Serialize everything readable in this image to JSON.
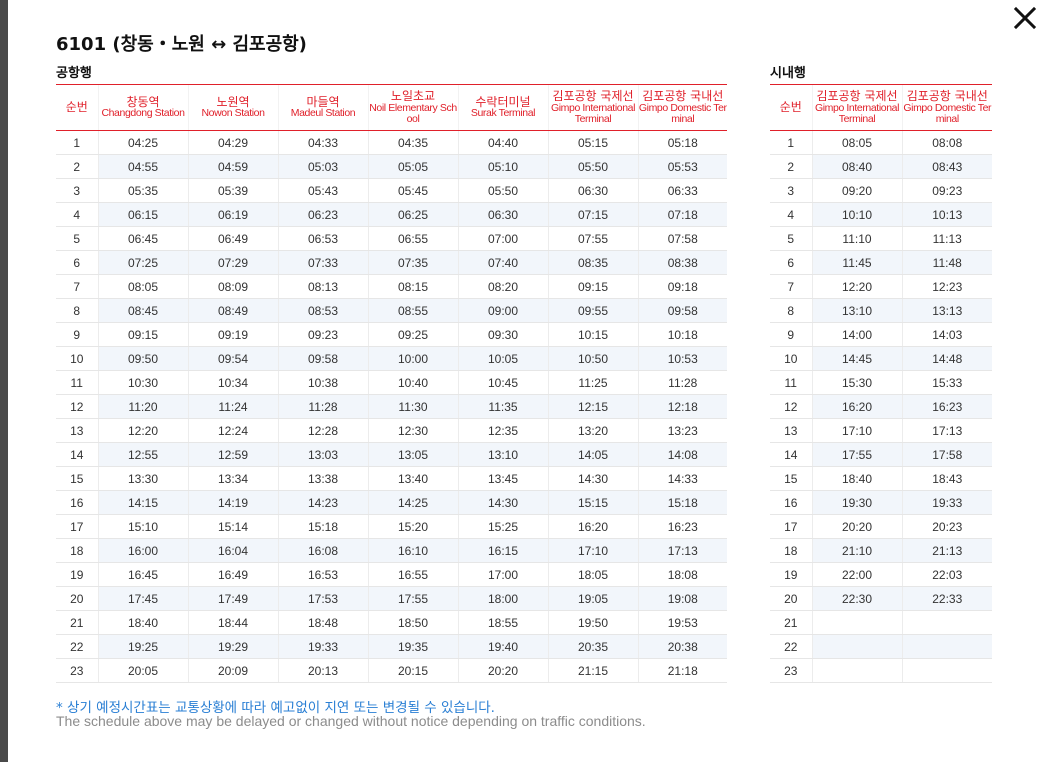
{
  "title": "6101 (창동・노원 ↔ 김포공항)",
  "close_icon": "close-icon",
  "airport": {
    "label": "공항행",
    "headers": [
      {
        "ko": "순번",
        "en": ""
      },
      {
        "ko": "창동역",
        "en": "Changdong Station"
      },
      {
        "ko": "노원역",
        "en": "Nowon Station"
      },
      {
        "ko": "마들역",
        "en": "Madeul Station"
      },
      {
        "ko": "노일초교",
        "en": "Noil Elementary School"
      },
      {
        "ko": "수락터미널",
        "en": "Surak Terminal"
      },
      {
        "ko": "김포공항 국제선",
        "en": "Gimpo International Terminal"
      },
      {
        "ko": "김포공항 국내선",
        "en": "Gimpo Domestic Terminal"
      }
    ],
    "rows": [
      [
        "1",
        "04:25",
        "04:29",
        "04:33",
        "04:35",
        "04:40",
        "05:15",
        "05:18"
      ],
      [
        "2",
        "04:55",
        "04:59",
        "05:03",
        "05:05",
        "05:10",
        "05:50",
        "05:53"
      ],
      [
        "3",
        "05:35",
        "05:39",
        "05:43",
        "05:45",
        "05:50",
        "06:30",
        "06:33"
      ],
      [
        "4",
        "06:15",
        "06:19",
        "06:23",
        "06:25",
        "06:30",
        "07:15",
        "07:18"
      ],
      [
        "5",
        "06:45",
        "06:49",
        "06:53",
        "06:55",
        "07:00",
        "07:55",
        "07:58"
      ],
      [
        "6",
        "07:25",
        "07:29",
        "07:33",
        "07:35",
        "07:40",
        "08:35",
        "08:38"
      ],
      [
        "7",
        "08:05",
        "08:09",
        "08:13",
        "08:15",
        "08:20",
        "09:15",
        "09:18"
      ],
      [
        "8",
        "08:45",
        "08:49",
        "08:53",
        "08:55",
        "09:00",
        "09:55",
        "09:58"
      ],
      [
        "9",
        "09:15",
        "09:19",
        "09:23",
        "09:25",
        "09:30",
        "10:15",
        "10:18"
      ],
      [
        "10",
        "09:50",
        "09:54",
        "09:58",
        "10:00",
        "10:05",
        "10:50",
        "10:53"
      ],
      [
        "11",
        "10:30",
        "10:34",
        "10:38",
        "10:40",
        "10:45",
        "11:25",
        "11:28"
      ],
      [
        "12",
        "11:20",
        "11:24",
        "11:28",
        "11:30",
        "11:35",
        "12:15",
        "12:18"
      ],
      [
        "13",
        "12:20",
        "12:24",
        "12:28",
        "12:30",
        "12:35",
        "13:20",
        "13:23"
      ],
      [
        "14",
        "12:55",
        "12:59",
        "13:03",
        "13:05",
        "13:10",
        "14:05",
        "14:08"
      ],
      [
        "15",
        "13:30",
        "13:34",
        "13:38",
        "13:40",
        "13:45",
        "14:30",
        "14:33"
      ],
      [
        "16",
        "14:15",
        "14:19",
        "14:23",
        "14:25",
        "14:30",
        "15:15",
        "15:18"
      ],
      [
        "17",
        "15:10",
        "15:14",
        "15:18",
        "15:20",
        "15:25",
        "16:20",
        "16:23"
      ],
      [
        "18",
        "16:00",
        "16:04",
        "16:08",
        "16:10",
        "16:15",
        "17:10",
        "17:13"
      ],
      [
        "19",
        "16:45",
        "16:49",
        "16:53",
        "16:55",
        "17:00",
        "18:05",
        "18:08"
      ],
      [
        "20",
        "17:45",
        "17:49",
        "17:53",
        "17:55",
        "18:00",
        "19:05",
        "19:08"
      ],
      [
        "21",
        "18:40",
        "18:44",
        "18:48",
        "18:50",
        "18:55",
        "19:50",
        "19:53"
      ],
      [
        "22",
        "19:25",
        "19:29",
        "19:33",
        "19:35",
        "19:40",
        "20:35",
        "20:38"
      ],
      [
        "23",
        "20:05",
        "20:09",
        "20:13",
        "20:15",
        "20:20",
        "21:15",
        "21:18"
      ]
    ]
  },
  "city": {
    "label": "시내행",
    "headers": [
      {
        "ko": "순번",
        "en": ""
      },
      {
        "ko": "김포공항 국제선",
        "en": "Gimpo International Terminal"
      },
      {
        "ko": "김포공항 국내선",
        "en": "Gimpo Domestic Terminal"
      }
    ],
    "rows": [
      [
        "1",
        "08:05",
        "08:08"
      ],
      [
        "2",
        "08:40",
        "08:43"
      ],
      [
        "3",
        "09:20",
        "09:23"
      ],
      [
        "4",
        "10:10",
        "10:13"
      ],
      [
        "5",
        "11:10",
        "11:13"
      ],
      [
        "6",
        "11:45",
        "11:48"
      ],
      [
        "7",
        "12:20",
        "12:23"
      ],
      [
        "8",
        "13:10",
        "13:13"
      ],
      [
        "9",
        "14:00",
        "14:03"
      ],
      [
        "10",
        "14:45",
        "14:48"
      ],
      [
        "11",
        "15:30",
        "15:33"
      ],
      [
        "12",
        "16:20",
        "16:23"
      ],
      [
        "13",
        "17:10",
        "17:13"
      ],
      [
        "14",
        "17:55",
        "17:58"
      ],
      [
        "15",
        "18:40",
        "18:43"
      ],
      [
        "16",
        "19:30",
        "19:33"
      ],
      [
        "17",
        "20:20",
        "20:23"
      ],
      [
        "18",
        "21:10",
        "21:13"
      ],
      [
        "19",
        "22:00",
        "22:03"
      ],
      [
        "20",
        "22:30",
        "22:33"
      ],
      [
        "21",
        "",
        ""
      ],
      [
        "22",
        "",
        ""
      ],
      [
        "23",
        "",
        ""
      ]
    ]
  },
  "notice": {
    "ko": "* 상기 예정시간표는 교통상황에 따라 예고없이 지연 또는 변경될 수 있습니다.",
    "en": "The schedule above may be delayed or changed without notice depending on traffic conditions."
  },
  "colors": {
    "header_accent": "#e0202a",
    "notice_blue": "#2a7fd4",
    "notice_gray": "#8c8c8c"
  }
}
